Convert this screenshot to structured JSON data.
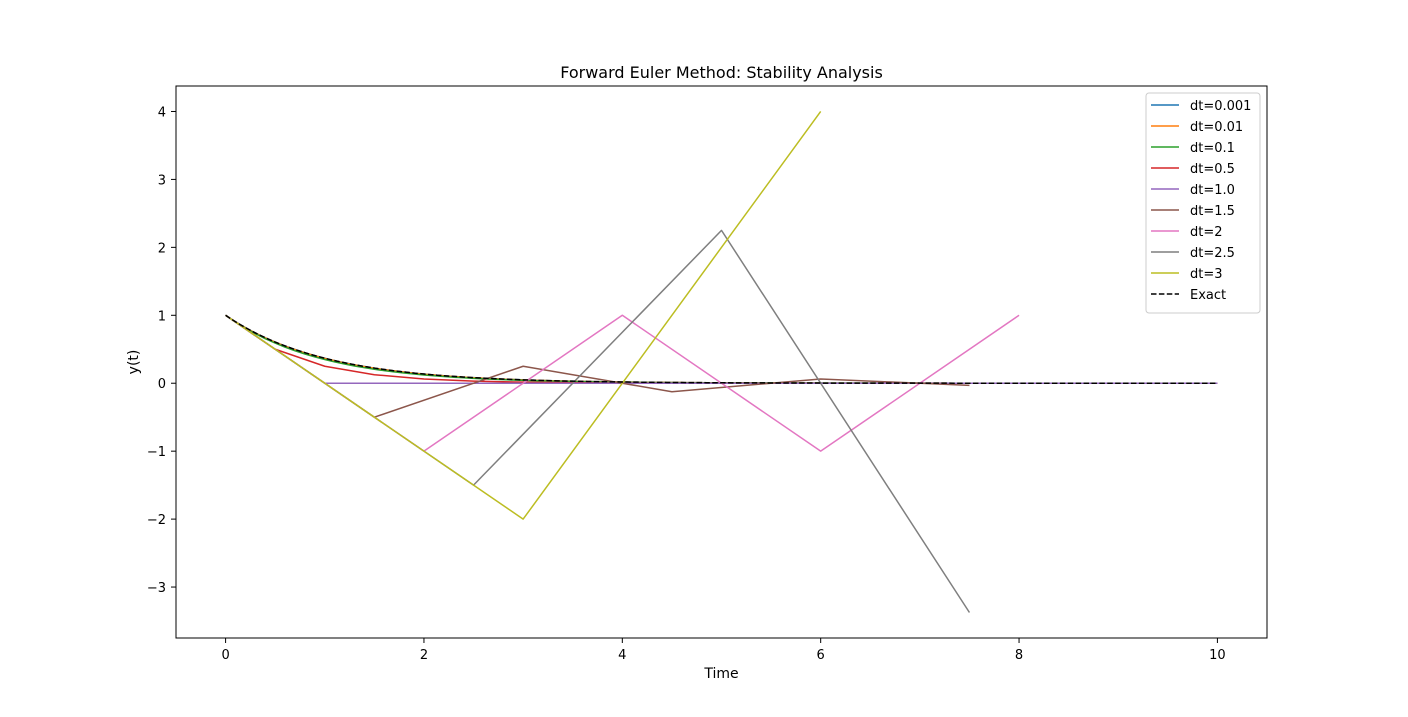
{
  "chart_data": {
    "type": "line",
    "title": "Forward Euler Method: Stability Analysis",
    "xlabel": "Time",
    "ylabel": "y(t)",
    "xlim": [
      -0.5,
      10.5
    ],
    "ylim": [
      -3.75,
      4.375
    ],
    "xticks": [
      0,
      2,
      4,
      6,
      8,
      10
    ],
    "yticks": [
      -3,
      -2,
      -1,
      0,
      1,
      2,
      3,
      4
    ],
    "grid": false,
    "legend_position": "top-right",
    "series": [
      {
        "name": "dt=0.001",
        "color": "#1f77b4",
        "dash": false,
        "kind": "exp",
        "dt": 0.001
      },
      {
        "name": "dt=0.01",
        "color": "#ff7f0e",
        "dash": false,
        "kind": "exp",
        "dt": 0.01
      },
      {
        "name": "dt=0.1",
        "color": "#2ca02c",
        "dash": false,
        "kind": "exp",
        "dt": 0.1
      },
      {
        "name": "dt=0.5",
        "color": "#d62728",
        "dash": false,
        "x": [
          0,
          0.5,
          1,
          1.5,
          2,
          2.5,
          3,
          3.5,
          4,
          4.5,
          5,
          5.5,
          6,
          6.5,
          7,
          7.5,
          8,
          8.5,
          9,
          9.5,
          10
        ],
        "y": [
          1,
          0.5,
          0.25,
          0.125,
          0.0625,
          0.03125,
          0.015625,
          0.0078125,
          0.00390625,
          0.001953,
          0.000977,
          0.000488,
          0.000244,
          0.000122,
          6.1e-05,
          3.1e-05,
          1.5e-05,
          8e-06,
          4e-06,
          2e-06,
          1e-06
        ]
      },
      {
        "name": "dt=1.0",
        "color": "#9467bd",
        "dash": false,
        "x": [
          0,
          1,
          2,
          3,
          4,
          5,
          6,
          7,
          8,
          9,
          10
        ],
        "y": [
          1,
          0,
          0,
          0,
          0,
          0,
          0,
          0,
          0,
          0,
          0
        ]
      },
      {
        "name": "dt=1.5",
        "color": "#8c564b",
        "dash": false,
        "x": [
          0,
          1.5,
          3,
          4.5,
          6,
          7.5
        ],
        "y": [
          1,
          -0.5,
          0.25,
          -0.125,
          0.0625,
          -0.03125
        ]
      },
      {
        "name": "dt=2",
        "color": "#e377c2",
        "dash": false,
        "x": [
          0,
          2,
          4,
          6,
          8
        ],
        "y": [
          1,
          -1,
          1,
          -1,
          1
        ]
      },
      {
        "name": "dt=2.5",
        "color": "#7f7f7f",
        "dash": false,
        "x": [
          0,
          2.5,
          5,
          7.5
        ],
        "y": [
          1,
          -1.5,
          2.25,
          -3.375
        ]
      },
      {
        "name": "dt=3",
        "color": "#bcbd22",
        "dash": false,
        "x": [
          0,
          3,
          6
        ],
        "y": [
          1,
          -2,
          4
        ]
      },
      {
        "name": "Exact",
        "color": "#000000",
        "dash": true,
        "kind": "exp",
        "dt": 0.05
      }
    ]
  }
}
